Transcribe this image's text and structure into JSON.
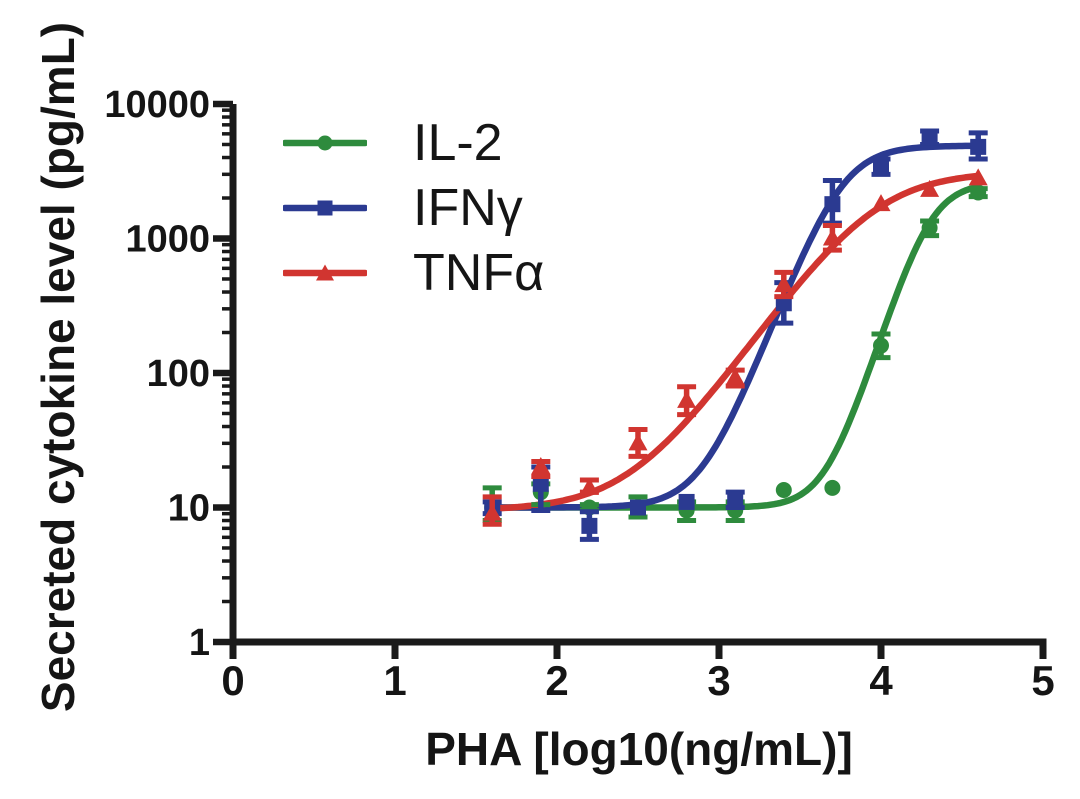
{
  "figure": {
    "background": "#ffffff",
    "text_color": "#151515"
  },
  "chart_data": {
    "type": "scatter",
    "title": "",
    "xlabel": "PHA [log10(ng/mL)]",
    "ylabel": "Secreted cytokine level (pg/mL)",
    "x_tick_labels": [
      "0",
      "1",
      "2",
      "3",
      "4",
      "5"
    ],
    "y_tick_labels": [
      "1",
      "10",
      "100",
      "1000",
      "10000"
    ],
    "xlim": [
      0,
      5
    ],
    "ylim": [
      1,
      10000
    ],
    "y_scale": "log10",
    "grid": false,
    "legend_position": "top-left inside",
    "axis_color": "#1a1a1a",
    "series": [
      {
        "id": "il2",
        "name": "IL-2",
        "color": "#2e8b3d",
        "marker": "circle",
        "x": [
          1.6,
          1.9,
          2.2,
          2.5,
          2.8,
          3.1,
          3.4,
          3.7,
          4.0,
          4.3,
          4.6
        ],
        "y": [
          10,
          13,
          10,
          10,
          9.5,
          9.5,
          13.5,
          14,
          160,
          1200,
          2200
        ],
        "y_err_low": [
          8,
          10.5,
          9.5,
          8.5,
          8,
          8,
          13.5,
          14,
          130,
          1050,
          2050
        ],
        "y_err_high": [
          14,
          15,
          10.5,
          12,
          11,
          11,
          13.5,
          14,
          195,
          1350,
          2350
        ],
        "fit": {
          "bottom": 10,
          "top": 2600,
          "logec50": 4.3,
          "hill": 3.8
        }
      },
      {
        "id": "ifng",
        "name": "IFNγ",
        "color": "#2b3a91",
        "marker": "square",
        "x": [
          1.6,
          1.9,
          2.2,
          2.5,
          2.8,
          3.1,
          3.4,
          3.7,
          4.0,
          4.3,
          4.6
        ],
        "y": [
          10,
          15,
          7.3,
          10,
          11,
          11.5,
          330,
          1800,
          3400,
          5600,
          4800
        ],
        "y_err_low": [
          9,
          9.5,
          5.8,
          10,
          11,
          10,
          235,
          1300,
          3000,
          5000,
          3900
        ],
        "y_err_high": [
          11,
          20,
          9.3,
          10,
          11,
          13,
          470,
          2700,
          3900,
          6300,
          6100
        ],
        "fit": {
          "bottom": 10,
          "top": 4900,
          "logec50": 3.76,
          "hill": 3.1
        }
      },
      {
        "id": "tnfa",
        "name": "TNFα",
        "color": "#d13530",
        "marker": "triangle",
        "x": [
          1.6,
          1.9,
          2.2,
          2.5,
          2.8,
          3.1,
          3.4,
          3.7,
          4.0,
          4.3,
          4.6
        ],
        "y": [
          9,
          20,
          14,
          30,
          62,
          92,
          450,
          1000,
          1800,
          2300,
          2800
        ],
        "y_err_low": [
          7.5,
          17,
          13,
          24,
          49,
          80,
          370,
          820,
          1800,
          2300,
          2800
        ],
        "y_err_high": [
          12,
          22,
          16,
          38,
          79,
          105,
          560,
          1250,
          1800,
          2300,
          2800
        ],
        "fit": {
          "bottom": 9.5,
          "top": 3150,
          "logec50": 3.95,
          "hill": 1.7
        }
      }
    ]
  }
}
